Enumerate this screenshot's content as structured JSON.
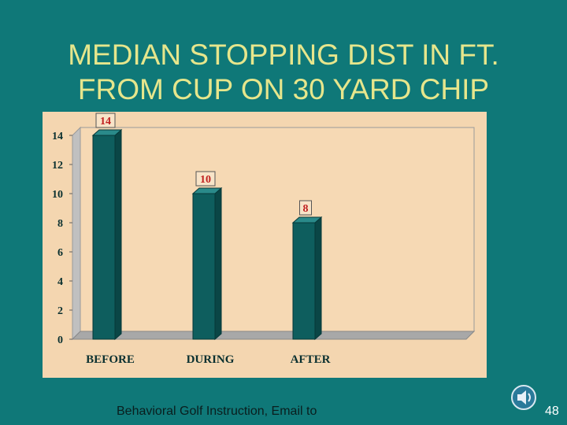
{
  "slide": {
    "title_line1": "MEDIAN STOPPING DIST IN FT.",
    "title_line2": "FROM CUP ON 30 YARD CHIP",
    "footer": "Behavioral Golf Instruction,  Email to",
    "page_number": "48"
  },
  "icons": {
    "speaker": "speaker-icon"
  },
  "colors": {
    "background": "#0f7878",
    "title": "#e6e68c",
    "chart_bg": "#f4d6b0",
    "bar": "#0e5e5e",
    "value_label": "#c02020"
  },
  "chart_data": {
    "type": "bar",
    "categories": [
      "BEFORE",
      "DURING",
      "AFTER"
    ],
    "values": [
      14,
      10,
      8
    ],
    "value_labels": [
      "14",
      "10",
      "8"
    ],
    "ylim": [
      0,
      14
    ],
    "yticks": [
      "0",
      "2",
      "4",
      "6",
      "8",
      "10",
      "12",
      "14"
    ],
    "grid": false,
    "legend": "none"
  }
}
